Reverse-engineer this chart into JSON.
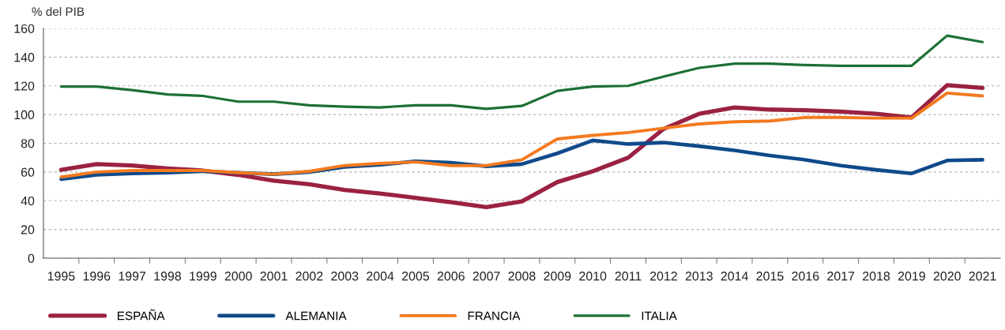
{
  "chart_data": {
    "type": "line",
    "ylabel": "% del PIB",
    "categories": [
      "1995",
      "1996",
      "1997",
      "1998",
      "1999",
      "2000",
      "2001",
      "2002",
      "2003",
      "2004",
      "2005",
      "2006",
      "2007",
      "2008",
      "2009",
      "2010",
      "2011",
      "2012",
      "2013",
      "2014",
      "2015",
      "2016",
      "2017",
      "2018",
      "2019",
      "2020",
      "2021"
    ],
    "series": [
      {
        "name": "ESPAÑA",
        "color": "#9b2242",
        "values": [
          61.5,
          65.5,
          64.5,
          62.5,
          61,
          58,
          54,
          51.5,
          47.5,
          45,
          42,
          39,
          35.5,
          39.5,
          53,
          60.5,
          70,
          90,
          100.5,
          105,
          103.5,
          103,
          102,
          100.5,
          98,
          120.5,
          118.5
        ]
      },
      {
        "name": "ALEMANIA",
        "color": "#0f4a8a",
        "values": [
          55,
          58,
          59,
          59.5,
          60.5,
          59.5,
          58.5,
          60,
          63.5,
          65,
          67.5,
          66.5,
          64,
          65.5,
          73,
          82,
          79.5,
          80.5,
          78,
          75,
          71.5,
          68.5,
          64.5,
          61.5,
          59,
          68,
          68.5
        ]
      },
      {
        "name": "FRANCIA",
        "color": "#f47a20",
        "values": [
          56.5,
          60,
          61,
          61,
          61,
          59.5,
          58.5,
          60.5,
          64.5,
          66,
          67,
          64.5,
          64.5,
          68.5,
          83,
          85.5,
          87.5,
          90.5,
          93.5,
          95,
          95.5,
          98,
          98,
          97.5,
          97.5,
          115,
          113
        ]
      },
      {
        "name": "ITALIA",
        "color": "#1c7034",
        "values": [
          119.5,
          119.5,
          117,
          114,
          113,
          109,
          109,
          106.5,
          105.5,
          105,
          106.5,
          106.5,
          104,
          106,
          116.5,
          119.5,
          120,
          126.5,
          132.5,
          135.5,
          135.5,
          134.5,
          134,
          134,
          134,
          155,
          150.5
        ]
      }
    ],
    "ylim": [
      0,
      160
    ],
    "yticks": [
      0,
      20,
      40,
      60,
      80,
      100,
      120,
      140,
      160
    ],
    "grid": "y",
    "legend": "bottom",
    "marker": "none",
    "line_style": "solid"
  }
}
